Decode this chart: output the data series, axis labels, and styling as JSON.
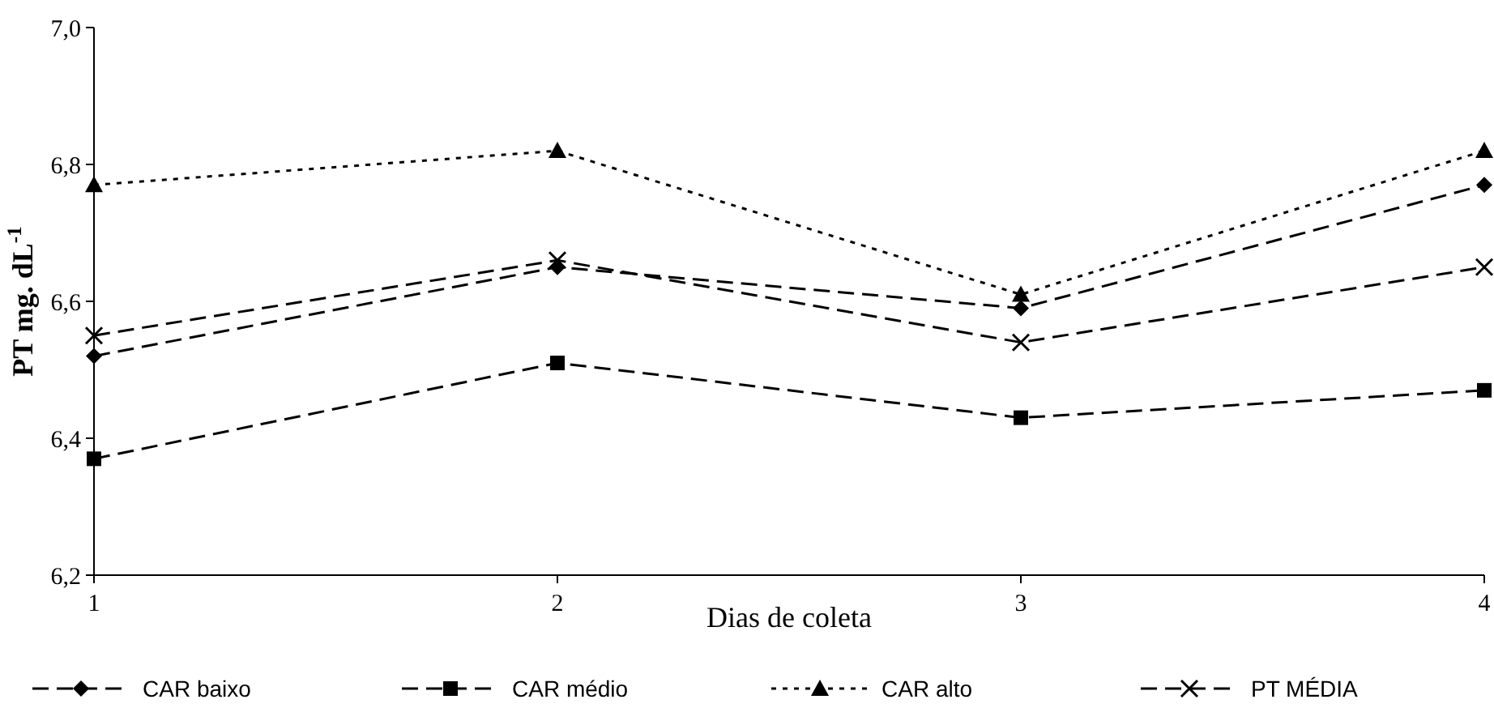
{
  "chart_data": {
    "type": "line",
    "xlabel": "Dias de coleta",
    "ylabel": "PT mg. dL$^{-1}$",
    "x": [
      1,
      2,
      3,
      4
    ],
    "xlim": [
      1,
      4
    ],
    "xticks": [
      1,
      2,
      3,
      4
    ],
    "ylim": [
      6.2,
      7.0
    ],
    "yticks": [
      {
        "value": 6.2,
        "label": "6,2"
      },
      {
        "value": 6.4,
        "label": "6,4"
      },
      {
        "value": 6.6,
        "label": "6,6"
      },
      {
        "value": 6.8,
        "label": "6,8"
      },
      {
        "value": 7.0,
        "label": "7,0"
      }
    ],
    "grid": false,
    "legend": "bottom",
    "series": [
      {
        "name": "CAR baixo",
        "color": "#000000",
        "marker": "diamond",
        "line_style": "dashed",
        "values": [
          6.52,
          6.65,
          6.59,
          6.77
        ]
      },
      {
        "name": "CAR médio",
        "color": "#000000",
        "marker": "square",
        "line_style": "dashed",
        "values": [
          6.37,
          6.51,
          6.43,
          6.47
        ]
      },
      {
        "name": "CAR alto",
        "color": "#000000",
        "marker": "triangle",
        "line_style": "dotted",
        "values": [
          6.77,
          6.82,
          6.61,
          6.82
        ]
      },
      {
        "name": "PT  MÉDIA",
        "color": "#000000",
        "marker": "cross",
        "line_style": "dashed",
        "values": [
          6.55,
          6.66,
          6.54,
          6.65
        ]
      }
    ]
  }
}
